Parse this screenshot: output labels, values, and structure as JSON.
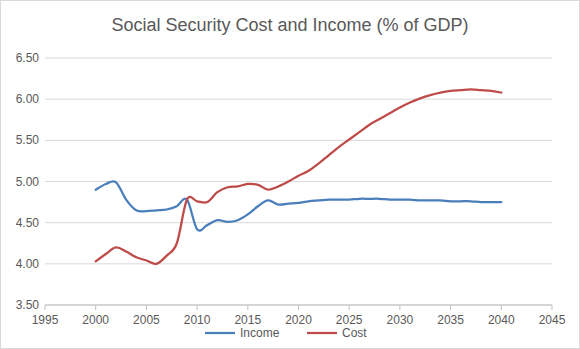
{
  "chart_data": {
    "type": "line",
    "title": "Social Security Cost and Income (% of GDP)",
    "x": [
      2000,
      2001,
      2002,
      2003,
      2004,
      2005,
      2006,
      2007,
      2008,
      2009,
      2010,
      2011,
      2012,
      2013,
      2014,
      2015,
      2016,
      2017,
      2018,
      2019,
      2020,
      2021,
      2022,
      2023,
      2024,
      2025,
      2026,
      2027,
      2028,
      2029,
      2030,
      2031,
      2032,
      2033,
      2034,
      2035,
      2036,
      2037,
      2038,
      2039,
      2040
    ],
    "series": [
      {
        "name": "Income",
        "color": "#4a7ebb",
        "line_style": "smooth",
        "values": [
          4.9,
          4.97,
          4.99,
          4.78,
          4.65,
          4.64,
          4.65,
          4.66,
          4.7,
          4.78,
          4.42,
          4.47,
          4.53,
          4.51,
          4.53,
          4.6,
          4.7,
          4.77,
          4.72,
          4.73,
          4.74,
          4.76,
          4.77,
          4.78,
          4.78,
          4.78,
          4.79,
          4.79,
          4.79,
          4.78,
          4.78,
          4.78,
          4.77,
          4.77,
          4.77,
          4.76,
          4.76,
          4.76,
          4.75,
          4.75,
          4.75
        ]
      },
      {
        "name": "Cost",
        "color": "#be4b48",
        "line_style": "smooth",
        "values": [
          4.03,
          4.12,
          4.2,
          4.15,
          4.08,
          4.04,
          4.0,
          4.1,
          4.25,
          4.78,
          4.76,
          4.75,
          4.87,
          4.93,
          4.94,
          4.97,
          4.96,
          4.9,
          4.94,
          5.0,
          5.07,
          5.13,
          5.22,
          5.32,
          5.42,
          5.51,
          5.6,
          5.69,
          5.76,
          5.83,
          5.9,
          5.96,
          6.01,
          6.05,
          6.08,
          6.1,
          6.11,
          6.12,
          6.11,
          6.1,
          6.08
        ]
      }
    ],
    "xlim": [
      1995,
      2045
    ],
    "xticks": [
      1995,
      2000,
      2005,
      2010,
      2015,
      2020,
      2025,
      2030,
      2035,
      2040,
      2045
    ],
    "ylim": [
      3.5,
      6.5
    ],
    "yticks": [
      {
        "value": 3.5,
        "label": "3.50"
      },
      {
        "value": 4,
        "label": "4.00"
      },
      {
        "value": 4.5,
        "label": "4.50"
      },
      {
        "value": 5,
        "label": "5.00"
      },
      {
        "value": 5.5,
        "label": "5.50"
      },
      {
        "value": 6,
        "label": "6.00"
      },
      {
        "value": 6.5,
        "label": "6.50"
      }
    ],
    "grid": true,
    "legend": "bottom"
  }
}
